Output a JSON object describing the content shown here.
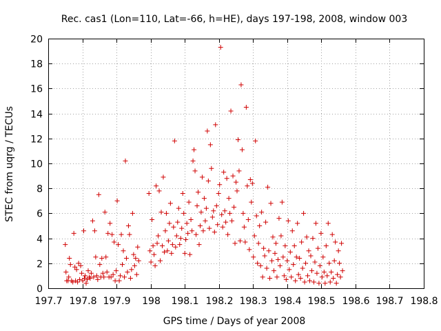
{
  "chart_data": {
    "type": "scatter",
    "title": "Rec. cas1 (Lon=110, Lat=-66, h=HE), days 197-198, 2008, window 003",
    "xlabel": "GPS time / Days of year 2008",
    "ylabel": "STEC from uqrg / TECUs",
    "xlim": [
      197.7,
      198.8
    ],
    "ylim": [
      0,
      20
    ],
    "xticks": [
      197.7,
      197.8,
      197.9,
      198.0,
      198.1,
      198.2,
      198.3,
      198.4,
      198.5,
      198.6,
      198.7,
      198.8
    ],
    "xtick_labels": [
      "197.7",
      "197.8",
      "197.9",
      "198",
      "198.1",
      "198.2",
      "198.3",
      "198.4",
      "198.5",
      "198.6",
      "198.7",
      "198.8"
    ],
    "yticks": [
      0,
      2,
      4,
      6,
      8,
      10,
      12,
      14,
      16,
      18,
      20
    ],
    "ytick_labels": [
      "0",
      "2",
      "4",
      "6",
      "8",
      "10",
      "12",
      "14",
      "16",
      "18",
      "20"
    ],
    "grid": true,
    "marker": "+",
    "marker_color": "#d00000",
    "series": [
      {
        "name": "STEC",
        "points": [
          [
            197.75,
            3.5
          ],
          [
            197.752,
            1.3
          ],
          [
            197.754,
            0.6
          ],
          [
            197.758,
            0.6
          ],
          [
            197.76,
            0.9
          ],
          [
            197.762,
            2.4
          ],
          [
            197.765,
            1.9
          ],
          [
            197.768,
            0.6
          ],
          [
            197.772,
            0.5
          ],
          [
            197.775,
            4.4
          ],
          [
            197.778,
            1.7
          ],
          [
            197.78,
            0.6
          ],
          [
            197.783,
            1.5
          ],
          [
            197.786,
            0.5
          ],
          [
            197.789,
            2.0
          ],
          [
            197.792,
            0.7
          ],
          [
            197.795,
            1.8
          ],
          [
            197.798,
            1.2
          ],
          [
            197.801,
            0.6
          ],
          [
            197.804,
            4.6
          ],
          [
            197.806,
            0.8
          ],
          [
            197.808,
            1.0
          ],
          [
            197.811,
            0.4
          ],
          [
            197.814,
            0.7
          ],
          [
            197.817,
            1.4
          ],
          [
            197.82,
            0.9
          ],
          [
            197.823,
            0.8
          ],
          [
            197.826,
            1.2
          ],
          [
            197.83,
            5.4
          ],
          [
            197.833,
            0.9
          ],
          [
            197.836,
            4.6
          ],
          [
            197.839,
            2.5
          ],
          [
            197.842,
            1.0
          ],
          [
            197.845,
            0.7
          ],
          [
            197.848,
            7.5
          ],
          [
            197.851,
            1.9
          ],
          [
            197.854,
            0.9
          ],
          [
            197.857,
            2.4
          ],
          [
            197.86,
            1.2
          ],
          [
            197.863,
            0.9
          ],
          [
            197.866,
            6.1
          ],
          [
            197.869,
            2.5
          ],
          [
            197.872,
            1.3
          ],
          [
            197.875,
            4.4
          ],
          [
            197.878,
            0.9
          ],
          [
            197.881,
            5.2
          ],
          [
            197.884,
            0.9
          ],
          [
            197.887,
            4.3
          ],
          [
            197.89,
            1.1
          ],
          [
            197.893,
            3.7
          ],
          [
            197.896,
            0.6
          ],
          [
            197.899,
            1.4
          ],
          [
            197.902,
            7.0
          ],
          [
            197.905,
            3.5
          ],
          [
            197.908,
            0.6
          ],
          [
            197.911,
            1.0
          ],
          [
            197.914,
            4.3
          ],
          [
            197.917,
            1.9
          ],
          [
            197.92,
            3.0
          ],
          [
            197.923,
            0.9
          ],
          [
            197.926,
            10.2
          ],
          [
            197.929,
            2.4
          ],
          [
            197.932,
            1.3
          ],
          [
            197.935,
            5.0
          ],
          [
            197.938,
            4.3
          ],
          [
            197.941,
            0.8
          ],
          [
            197.944,
            1.5
          ],
          [
            197.947,
            6.0
          ],
          [
            197.95,
            2.7
          ],
          [
            197.953,
            1.8
          ],
          [
            197.956,
            2.4
          ],
          [
            197.959,
            1.1
          ],
          [
            197.962,
            3.3
          ],
          [
            197.965,
            2.2
          ],
          [
            197.995,
            7.6
          ],
          [
            197.998,
            3.0
          ],
          [
            198.001,
            2.1
          ],
          [
            198.004,
            5.5
          ],
          [
            198.007,
            3.4
          ],
          [
            198.01,
            2.7
          ],
          [
            198.013,
            1.8
          ],
          [
            198.016,
            8.2
          ],
          [
            198.019,
            3.6
          ],
          [
            198.022,
            4.2
          ],
          [
            198.025,
            7.8
          ],
          [
            198.028,
            2.2
          ],
          [
            198.031,
            6.1
          ],
          [
            198.034,
            3.4
          ],
          [
            198.037,
            8.9
          ],
          [
            198.04,
            2.9
          ],
          [
            198.043,
            4.6
          ],
          [
            198.046,
            6.0
          ],
          [
            198.049,
            3.0
          ],
          [
            198.052,
            3.8
          ],
          [
            198.055,
            5.2
          ],
          [
            198.058,
            6.8
          ],
          [
            198.061,
            2.8
          ],
          [
            198.064,
            3.5
          ],
          [
            198.067,
            4.9
          ],
          [
            198.07,
            11.8
          ],
          [
            198.073,
            3.3
          ],
          [
            198.076,
            4.2
          ],
          [
            198.079,
            5.3
          ],
          [
            198.082,
            6.4
          ],
          [
            198.085,
            3.5
          ],
          [
            198.088,
            4.0
          ],
          [
            198.091,
            4.8
          ],
          [
            198.094,
            7.6
          ],
          [
            198.097,
            6.0
          ],
          [
            198.1,
            2.8
          ],
          [
            198.103,
            3.9
          ],
          [
            198.106,
            5.2
          ],
          [
            198.109,
            4.4
          ],
          [
            198.112,
            6.9
          ],
          [
            198.115,
            2.7
          ],
          [
            198.118,
            5.5
          ],
          [
            198.121,
            4.6
          ],
          [
            198.124,
            10.2
          ],
          [
            198.127,
            11.1
          ],
          [
            198.13,
            9.4
          ],
          [
            198.133,
            4.3
          ],
          [
            198.136,
            6.6
          ],
          [
            198.139,
            7.7
          ],
          [
            198.142,
            3.5
          ],
          [
            198.145,
            5.0
          ],
          [
            198.148,
            6.1
          ],
          [
            198.151,
            8.9
          ],
          [
            198.154,
            4.6
          ],
          [
            198.157,
            7.2
          ],
          [
            198.16,
            5.4
          ],
          [
            198.163,
            6.4
          ],
          [
            198.166,
            12.6
          ],
          [
            198.169,
            8.6
          ],
          [
            198.172,
            4.8
          ],
          [
            198.175,
            11.5
          ],
          [
            198.178,
            9.6
          ],
          [
            198.181,
            5.7
          ],
          [
            198.184,
            6.2
          ],
          [
            198.187,
            4.5
          ],
          [
            198.19,
            13.1
          ],
          [
            198.193,
            6.6
          ],
          [
            198.196,
            5.1
          ],
          [
            198.199,
            7.6
          ],
          [
            198.202,
            8.3
          ],
          [
            198.205,
            19.3
          ],
          [
            198.208,
            5.9
          ],
          [
            198.211,
            4.9
          ],
          [
            198.214,
            9.3
          ],
          [
            198.217,
            6.2
          ],
          [
            198.22,
            5.3
          ],
          [
            198.223,
            8.8
          ],
          [
            198.226,
            4.3
          ],
          [
            198.229,
            7.2
          ],
          [
            198.232,
            6.0
          ],
          [
            198.235,
            14.2
          ],
          [
            198.238,
            5.4
          ],
          [
            198.241,
            9.0
          ],
          [
            198.244,
            6.5
          ],
          [
            198.247,
            3.6
          ],
          [
            198.25,
            8.5
          ],
          [
            198.253,
            7.8
          ],
          [
            198.256,
            11.9
          ],
          [
            198.259,
            9.4
          ],
          [
            198.262,
            3.8
          ],
          [
            198.265,
            16.3
          ],
          [
            198.268,
            11.1
          ],
          [
            198.271,
            6.0
          ],
          [
            198.274,
            4.9
          ],
          [
            198.277,
            3.7
          ],
          [
            198.28,
            14.5
          ],
          [
            198.283,
            8.2
          ],
          [
            198.286,
            5.5
          ],
          [
            198.289,
            3.1
          ],
          [
            198.292,
            8.7
          ],
          [
            198.295,
            6.9
          ],
          [
            198.298,
            8.4
          ],
          [
            198.301,
            2.5
          ],
          [
            198.304,
            4.2
          ],
          [
            198.307,
            11.8
          ],
          [
            198.31,
            5.8
          ],
          [
            198.313,
            2.0
          ],
          [
            198.316,
            3.6
          ],
          [
            198.319,
            5.0
          ],
          [
            198.322,
            1.8
          ],
          [
            198.325,
            6.1
          ],
          [
            198.328,
            0.9
          ],
          [
            198.331,
            3.2
          ],
          [
            198.334,
            2.6
          ],
          [
            198.337,
            5.3
          ],
          [
            198.34,
            1.6
          ],
          [
            198.343,
            8.1
          ],
          [
            198.346,
            3.0
          ],
          [
            198.349,
            0.8
          ],
          [
            198.352,
            6.8
          ],
          [
            198.355,
            2.2
          ],
          [
            198.358,
            4.1
          ],
          [
            198.361,
            1.4
          ],
          [
            198.364,
            2.8
          ],
          [
            198.367,
            3.6
          ],
          [
            198.37,
            0.9
          ],
          [
            198.373,
            2.3
          ],
          [
            198.376,
            5.6
          ],
          [
            198.379,
            1.8
          ],
          [
            198.382,
            4.2
          ],
          [
            198.385,
            6.9
          ],
          [
            198.388,
            2.5
          ],
          [
            198.391,
            1.0
          ],
          [
            198.394,
            3.4
          ],
          [
            198.397,
            0.7
          ],
          [
            198.4,
            2.2
          ],
          [
            198.403,
            5.4
          ],
          [
            198.406,
            1.5
          ],
          [
            198.409,
            2.9
          ],
          [
            198.412,
            0.9
          ],
          [
            198.415,
            4.6
          ],
          [
            198.418,
            1.9
          ],
          [
            198.421,
            3.4
          ],
          [
            198.424,
            0.6
          ],
          [
            198.427,
            2.5
          ],
          [
            198.43,
            5.2
          ],
          [
            198.433,
            1.1
          ],
          [
            198.436,
            2.4
          ],
          [
            198.439,
            0.8
          ],
          [
            198.442,
            3.7
          ],
          [
            198.445,
            1.6
          ],
          [
            198.448,
            6.0
          ],
          [
            198.451,
            0.5
          ],
          [
            198.454,
            2.0
          ],
          [
            198.457,
            4.1
          ],
          [
            198.46,
            1.0
          ],
          [
            198.463,
            3.0
          ],
          [
            198.466,
            0.6
          ],
          [
            198.469,
            2.6
          ],
          [
            198.472,
            1.4
          ],
          [
            198.475,
            4.0
          ],
          [
            198.478,
            0.5
          ],
          [
            198.481,
            2.1
          ],
          [
            198.484,
            5.2
          ],
          [
            198.487,
            1.2
          ],
          [
            198.49,
            3.2
          ],
          [
            198.493,
            0.4
          ],
          [
            198.496,
            1.8
          ],
          [
            198.499,
            4.4
          ],
          [
            198.502,
            0.9
          ],
          [
            198.505,
            2.5
          ],
          [
            198.508,
            1.3
          ],
          [
            198.511,
            0.4
          ],
          [
            198.514,
            3.4
          ],
          [
            198.517,
            1.0
          ],
          [
            198.52,
            5.2
          ],
          [
            198.523,
            2.0
          ],
          [
            198.526,
            0.5
          ],
          [
            198.529,
            1.3
          ],
          [
            198.532,
            4.3
          ],
          [
            198.535,
            0.8
          ],
          [
            198.538,
            2.2
          ],
          [
            198.541,
            3.7
          ],
          [
            198.544,
            0.4
          ],
          [
            198.547,
            1.1
          ],
          [
            198.55,
            3.0
          ],
          [
            198.553,
            2.0
          ],
          [
            198.556,
            0.9
          ],
          [
            198.559,
            3.6
          ],
          [
            198.562,
            1.4
          ]
        ]
      }
    ]
  }
}
